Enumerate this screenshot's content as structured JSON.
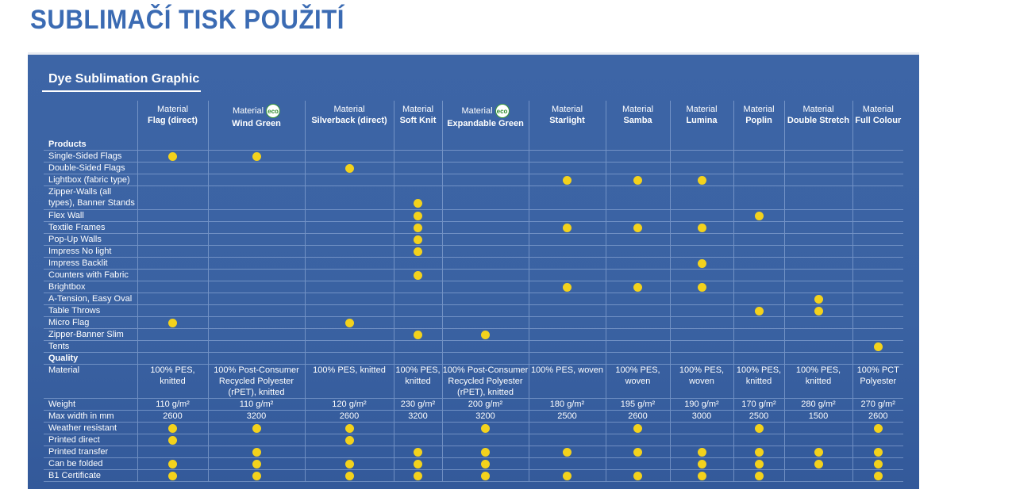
{
  "slide_title": "SUBLIMAČÍ TISK POUŽITÍ",
  "panel_title": "Dye Sublimation Graphic",
  "material_word": "Material",
  "eco_badge_text": "eco",
  "columns": [
    {
      "name": "Flag (direct)",
      "eco": false
    },
    {
      "name": "Wind Green",
      "eco": true
    },
    {
      "name": "Silverback (direct)",
      "eco": false
    },
    {
      "name": "Soft Knit",
      "eco": false
    },
    {
      "name": "Expandable Green",
      "eco": true
    },
    {
      "name": "Starlight",
      "eco": false
    },
    {
      "name": "Samba",
      "eco": false
    },
    {
      "name": "Lumina",
      "eco": false
    },
    {
      "name": "Poplin",
      "eco": false
    },
    {
      "name": "Double Stretch",
      "eco": false
    },
    {
      "name": "Full Colour",
      "eco": false
    }
  ],
  "products_heading": "Products",
  "products": [
    {
      "label": "Single-Sided Flags",
      "marks": [
        1,
        1,
        0,
        0,
        0,
        0,
        0,
        0,
        0,
        0,
        0
      ]
    },
    {
      "label": "Double-Sided Flags",
      "marks": [
        0,
        0,
        1,
        0,
        0,
        0,
        0,
        0,
        0,
        0,
        0
      ]
    },
    {
      "label": "Lightbox (fabric type)",
      "marks": [
        0,
        0,
        0,
        0,
        0,
        1,
        1,
        1,
        0,
        0,
        0
      ]
    },
    {
      "label": "Zipper-Walls (all types), Banner Stands",
      "marks": [
        0,
        0,
        0,
        1,
        0,
        0,
        0,
        0,
        0,
        0,
        0
      ]
    },
    {
      "label": "Flex Wall",
      "marks": [
        0,
        0,
        0,
        1,
        0,
        0,
        0,
        0,
        1,
        0,
        0
      ]
    },
    {
      "label": "Textile Frames",
      "marks": [
        0,
        0,
        0,
        1,
        0,
        1,
        1,
        1,
        0,
        0,
        0
      ]
    },
    {
      "label": "Pop-Up Walls",
      "marks": [
        0,
        0,
        0,
        1,
        0,
        0,
        0,
        0,
        0,
        0,
        0
      ]
    },
    {
      "label": "Impress No light",
      "marks": [
        0,
        0,
        0,
        1,
        0,
        0,
        0,
        0,
        0,
        0,
        0
      ]
    },
    {
      "label": "Impress Backlit",
      "marks": [
        0,
        0,
        0,
        0,
        0,
        0,
        0,
        1,
        0,
        0,
        0
      ]
    },
    {
      "label": "Counters with Fabric",
      "marks": [
        0,
        0,
        0,
        1,
        0,
        0,
        0,
        0,
        0,
        0,
        0
      ]
    },
    {
      "label": "Brightbox",
      "marks": [
        0,
        0,
        0,
        0,
        0,
        1,
        1,
        1,
        0,
        0,
        0
      ]
    },
    {
      "label": "A-Tension, Easy Oval",
      "marks": [
        0,
        0,
        0,
        0,
        0,
        0,
        0,
        0,
        0,
        1,
        0
      ]
    },
    {
      "label": "Table Throws",
      "marks": [
        0,
        0,
        0,
        0,
        0,
        0,
        0,
        0,
        1,
        1,
        0
      ]
    },
    {
      "label": "Micro Flag",
      "marks": [
        1,
        0,
        1,
        0,
        0,
        0,
        0,
        0,
        0,
        0,
        0
      ]
    },
    {
      "label": "Zipper-Banner Slim",
      "marks": [
        0,
        0,
        0,
        1,
        1,
        0,
        0,
        0,
        0,
        0,
        0
      ]
    },
    {
      "label": "Tents",
      "marks": [
        0,
        0,
        0,
        0,
        0,
        0,
        0,
        0,
        0,
        0,
        1
      ]
    }
  ],
  "quality_heading": "Quality",
  "quality_values": [
    {
      "label": "Material",
      "values": [
        "100% PES, knitted",
        "100% Post-Consumer Recycled Polyester (rPET), knitted",
        "100% PES, knitted",
        "100% PES, knitted",
        "100% Post-Consumer Recycled Polyester (rPET), knitted",
        "100% PES, woven",
        "100% PES, woven",
        "100% PES, woven",
        "100% PES, knitted",
        "100% PES, knitted",
        "100% PCT Polyester"
      ]
    },
    {
      "label": "Weight",
      "values": [
        "110 g/m²",
        "110 g/m²",
        "120 g/m²",
        "230 g/m²",
        "200 g/m²",
        "180 g/m²",
        "195 g/m²",
        "190 g/m²",
        "170 g/m²",
        "280 g/m²",
        "270 g/m²"
      ]
    },
    {
      "label": "Max width in mm",
      "values": [
        "2600",
        "3200",
        "2600",
        "3200",
        "3200",
        "2500",
        "2600",
        "3000",
        "2500",
        "1500",
        "2600"
      ]
    }
  ],
  "quality_marks": [
    {
      "label": "Weather resistant",
      "marks": [
        1,
        1,
        1,
        0,
        1,
        0,
        1,
        0,
        1,
        0,
        1
      ]
    },
    {
      "label": "Printed direct",
      "marks": [
        1,
        0,
        1,
        0,
        0,
        0,
        0,
        0,
        0,
        0,
        0
      ]
    },
    {
      "label": "Printed transfer",
      "marks": [
        0,
        1,
        0,
        1,
        1,
        1,
        1,
        1,
        1,
        1,
        1
      ]
    },
    {
      "label": "Can be folded",
      "marks": [
        1,
        1,
        1,
        1,
        1,
        0,
        0,
        1,
        1,
        1,
        1
      ]
    },
    {
      "label": "B1 Certificate",
      "marks": [
        1,
        1,
        1,
        1,
        1,
        1,
        1,
        1,
        1,
        0,
        1
      ]
    }
  ],
  "colors": {
    "panel": "#3a62a2",
    "dot": "#f3d21c",
    "title": "#3b6bb3"
  }
}
